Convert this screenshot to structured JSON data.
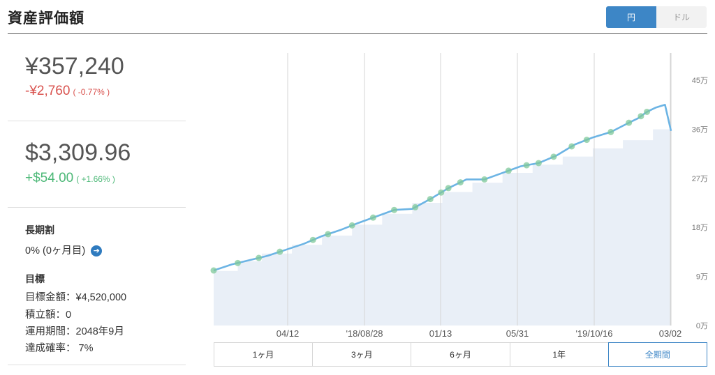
{
  "header": {
    "title": "資産評価額",
    "currency_toggle": {
      "yen": "円",
      "dollar": "ドル",
      "selected": "yen"
    }
  },
  "summary": {
    "yen_value": "¥357,240",
    "yen_change": "-¥2,760",
    "yen_change_pct": "( -0.77% )",
    "usd_value": "$3,309.96",
    "usd_change": "+$54.00",
    "usd_change_pct": "( +1.66% )"
  },
  "long_term": {
    "heading": "長期割",
    "value": "0% (0ヶ月目)",
    "icon": "arrow-right-icon"
  },
  "goal": {
    "heading": "目標",
    "amount": "目標金額：¥4,520,000",
    "accumulation": "積立額：0",
    "period": "運用期間：2048年9月",
    "probability": "達成確率： 7%"
  },
  "range_tabs": {
    "items": [
      "1ヶ月",
      "3ヶ月",
      "6ヶ月",
      "1年",
      "全期間"
    ],
    "selected": "全期間"
  },
  "colors": {
    "accent": "#3d86c6",
    "line": "#6cb4e4",
    "area": "#e9eff7",
    "marker": "#7fc89a",
    "negative": "#d9534f",
    "positive": "#4cb877"
  },
  "chart_data": {
    "type": "line",
    "y_unit": "円",
    "y_ticks": [
      "0万",
      "9万",
      "18万",
      "27万",
      "36万",
      "45万"
    ],
    "y_tick_values": [
      0,
      90000,
      180000,
      270000,
      360000,
      450000
    ],
    "ylim": [
      0,
      500000
    ],
    "x_ticks": [
      "04/12",
      "'18/08/28",
      "01/13",
      "05/31",
      "'19/10/16",
      "03/02"
    ],
    "grid": true,
    "series": [
      {
        "kind": "line",
        "x": [
          0,
          30,
          60,
          90,
          120,
          150,
          180,
          210,
          240,
          270,
          300,
          330,
          360,
          390,
          420,
          450,
          480,
          510,
          540,
          570,
          600,
          630,
          660,
          690,
          705,
          720,
          735,
          750,
          760
        ],
        "values": [
          101000,
          112000,
          120000,
          128000,
          139000,
          150000,
          164000,
          175000,
          188000,
          200000,
          212000,
          214000,
          232000,
          252000,
          268000,
          268000,
          280000,
          292000,
          298000,
          312000,
          332000,
          345000,
          355000,
          372000,
          380000,
          392000,
          400000,
          405000,
          357000
        ]
      },
      {
        "kind": "area",
        "x": [
          0,
          40,
          40,
          80,
          80,
          130,
          130,
          180,
          180,
          230,
          230,
          280,
          280,
          330,
          330,
          380,
          380,
          430,
          430,
          480,
          480,
          530,
          530,
          580,
          580,
          630,
          630,
          680,
          680,
          730,
          730,
          760
        ],
        "values": [
          100000,
          100000,
          118000,
          118000,
          132000,
          132000,
          148000,
          148000,
          165000,
          165000,
          185000,
          185000,
          205000,
          205000,
          225000,
          225000,
          245000,
          245000,
          262000,
          262000,
          280000,
          280000,
          295000,
          295000,
          310000,
          310000,
          325000,
          325000,
          340000,
          340000,
          360000,
          360000
        ]
      }
    ],
    "markers_x": [
      0,
      40,
      75,
      110,
      165,
      190,
      230,
      265,
      300,
      335,
      360,
      378,
      390,
      410,
      450,
      490,
      520,
      540,
      565,
      595,
      620,
      660,
      690,
      710,
      720
    ]
  }
}
